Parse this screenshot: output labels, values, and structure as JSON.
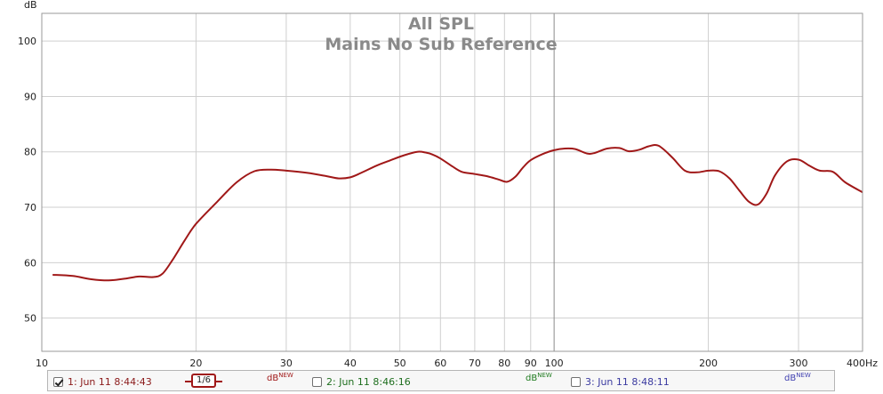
{
  "chart_data": {
    "type": "line",
    "title": "All SPL",
    "subtitle": "Mains No Sub Reference",
    "ylabel": "dB",
    "xunit": "Hz",
    "xscale": "log",
    "xlim": [
      10,
      400
    ],
    "ylim": [
      44,
      105
    ],
    "yticks": [
      50,
      60,
      70,
      80,
      90,
      100
    ],
    "xticks": [
      10,
      20,
      30,
      40,
      50,
      60,
      70,
      80,
      90,
      100,
      200,
      300,
      400
    ],
    "xtick_labels": [
      "10",
      "20",
      "30",
      "40",
      "50",
      "60",
      "70",
      "80",
      "90",
      "100",
      "200",
      "300",
      "400Hz"
    ],
    "grid": true,
    "series": [
      {
        "name": "1: Jun 11 8:44:43",
        "color": "#a01818",
        "x": [
          10.5,
          11.5,
          12.5,
          13.5,
          14.5,
          15.5,
          16.5,
          17.2,
          18,
          19,
          20,
          22,
          24,
          26,
          28,
          30,
          33,
          36,
          38,
          40,
          42,
          45,
          48,
          51,
          54,
          56,
          58,
          60,
          63,
          66,
          70,
          74,
          78,
          81,
          84,
          87,
          90,
          95,
          100,
          105,
          110,
          116,
          120,
          127,
          134,
          140,
          147,
          153,
          160,
          170,
          180,
          190,
          200,
          210,
          220,
          230,
          240,
          250,
          260,
          270,
          285,
          300,
          315,
          330,
          350,
          370,
          400
        ],
        "values": [
          57.8,
          57.6,
          57.0,
          56.8,
          57.1,
          57.5,
          57.4,
          58.0,
          60.5,
          64.0,
          67.0,
          71.0,
          74.5,
          76.5,
          76.8,
          76.6,
          76.2,
          75.6,
          75.2,
          75.4,
          76.2,
          77.5,
          78.5,
          79.4,
          80.0,
          79.9,
          79.5,
          78.8,
          77.5,
          76.4,
          76.0,
          75.6,
          75.0,
          74.6,
          75.5,
          77.2,
          78.5,
          79.6,
          80.3,
          80.6,
          80.5,
          79.7,
          79.8,
          80.6,
          80.7,
          80.1,
          80.4,
          81.0,
          81.1,
          79.0,
          76.6,
          76.3,
          76.6,
          76.5,
          75.2,
          73.0,
          71.0,
          70.5,
          72.5,
          75.8,
          78.3,
          78.6,
          77.5,
          76.6,
          76.4,
          74.5,
          72.7
        ]
      }
    ],
    "legend": {
      "placement": "bottom",
      "items": [
        {
          "label": "1: Jun 11 8:44:43",
          "checked": true,
          "color": "#8b1a1a",
          "unit": "dB",
          "unit_sup": "NEW",
          "unit_color": "#a01818",
          "smoothing": "1/6"
        },
        {
          "label": "2: Jun 11 8:46:16",
          "checked": false,
          "color": "#1e6e1e",
          "unit": "dB",
          "unit_sup": "NEW",
          "unit_color": "#1e7a1e"
        },
        {
          "label": "3: Jun 11 8:48:11",
          "checked": false,
          "color": "#3a3aa0",
          "unit": "dB",
          "unit_sup": "NEW",
          "unit_color": "#4040b0"
        }
      ]
    }
  }
}
